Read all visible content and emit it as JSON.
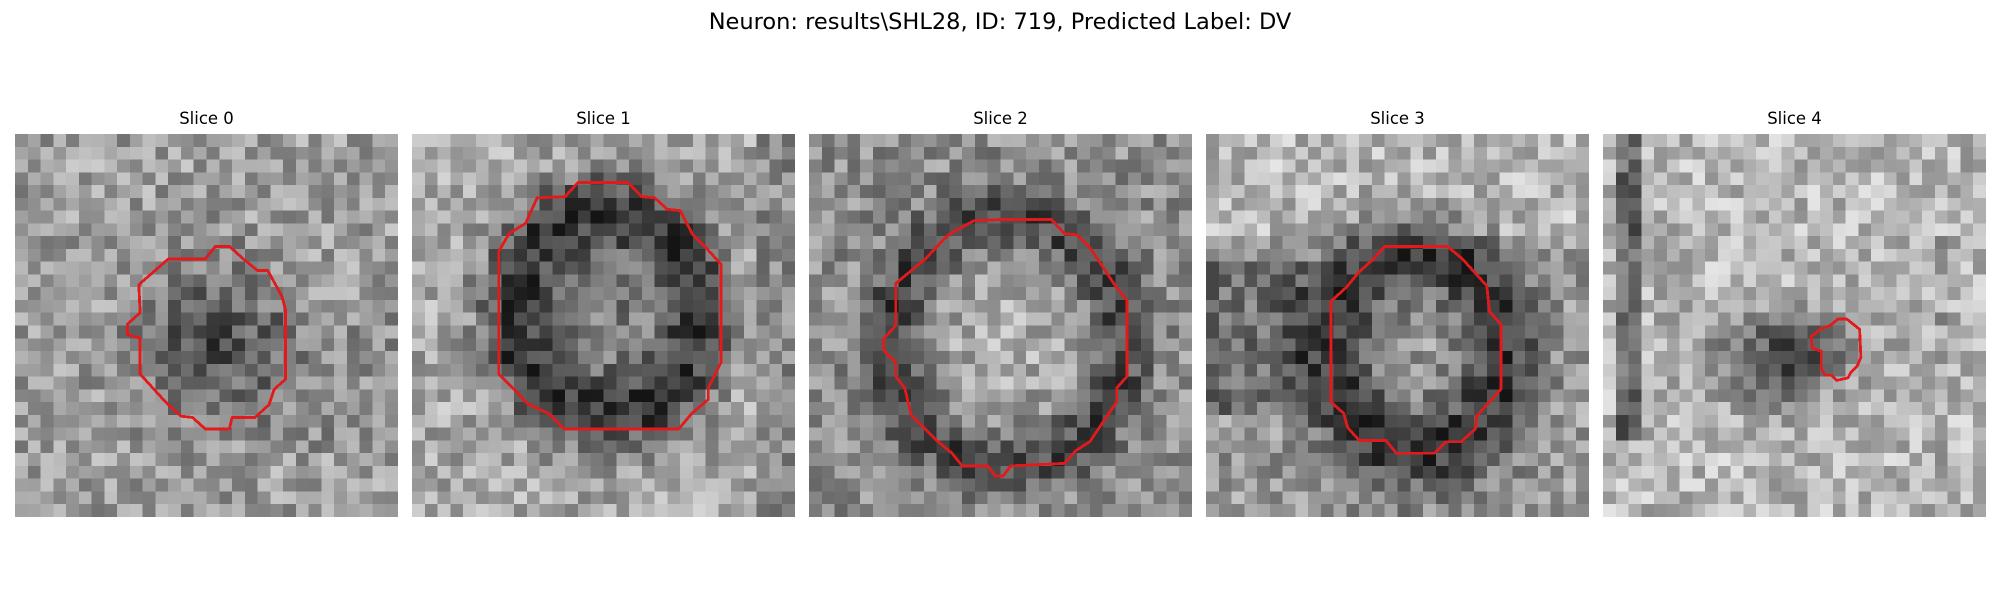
{
  "figure": {
    "title": "Neuron: results\\SHL28, ID: 719, Predicted Label: DV"
  },
  "outline_color": "#e31a1c",
  "colormap": "grayscale",
  "slices": [
    {
      "title": "Slice 0"
    },
    {
      "title": "Slice 1"
    },
    {
      "title": "Slice 2"
    },
    {
      "title": "Slice 3"
    },
    {
      "title": "Slice 4"
    }
  ]
}
